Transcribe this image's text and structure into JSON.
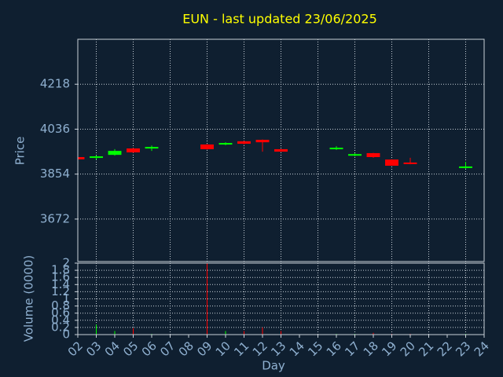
{
  "chart_data": [
    {
      "type": "candlestick",
      "title": "EUN - last updated 23/06/2025",
      "y_label": "Price",
      "x": [
        2,
        3,
        4,
        5,
        6,
        9,
        10,
        11,
        12,
        13,
        16,
        17,
        18,
        19,
        20,
        23
      ],
      "open": [
        3923,
        3920,
        3932,
        3958,
        3958,
        3974,
        3974,
        3987,
        3993,
        3955,
        3955,
        3929,
        3939,
        3913,
        3901,
        3879
      ],
      "high": [
        3925,
        3930,
        3955,
        3960,
        3970,
        3976,
        3983,
        3988,
        3994,
        3956,
        3967,
        3938,
        3940,
        3914,
        3920,
        3904
      ],
      "low": [
        3912,
        3913,
        3929,
        3940,
        3948,
        3953,
        3971,
        3974,
        3945,
        3944,
        3952,
        3926,
        3920,
        3888,
        3894,
        3876
      ],
      "close": [
        3914,
        3926,
        3948,
        3942,
        3964,
        3955,
        3980,
        3977,
        3983,
        3945,
        3961,
        3935,
        3923,
        3888,
        3895,
        3885
      ],
      "up_color": "#00ff00",
      "down_color": "#ff0000",
      "xlim": [
        2,
        24
      ],
      "ylim": [
        3500,
        4400
      ],
      "yticks": [
        3672,
        3854,
        4036,
        4218
      ],
      "grid": true
    },
    {
      "type": "bar",
      "x_label": "Day",
      "y_label": "Volume (0000)",
      "x": [
        2,
        3,
        4,
        5,
        6,
        9,
        10,
        11,
        12,
        13,
        16,
        17,
        18,
        19,
        20,
        23
      ],
      "values": [
        0.02,
        0.28,
        0.1,
        0.18,
        0.02,
        2.0,
        0.1,
        0.1,
        0.2,
        0.1,
        0.02,
        0.02,
        0.05,
        0.02,
        0.02,
        0.02
      ],
      "colors": [
        "#ff0000",
        "#00ff00",
        "#00ff00",
        "#ff0000",
        "#00ff00",
        "#ff0000",
        "#00ff00",
        "#ff0000",
        "#ff0000",
        "#ff0000",
        "#00ff00",
        "#00ff00",
        "#ff0000",
        "#ff0000",
        "#ff0000",
        "#00ff00"
      ],
      "xlim": [
        2,
        24
      ],
      "ylim": [
        0,
        2
      ],
      "yticks": [
        0,
        0.2,
        0.4,
        0.6,
        0.8,
        1,
        1.2,
        1.4,
        1.6,
        1.8,
        2
      ],
      "xticks": [
        {
          "value": 2,
          "label": "02"
        },
        {
          "value": 3,
          "label": "03"
        },
        {
          "value": 4,
          "label": "04"
        },
        {
          "value": 5,
          "label": "05"
        },
        {
          "value": 6,
          "label": "06"
        },
        {
          "value": 7,
          "label": "07"
        },
        {
          "value": 8,
          "label": "08"
        },
        {
          "value": 9,
          "label": "09"
        },
        {
          "value": 10,
          "label": "10"
        },
        {
          "value": 11,
          "label": "11"
        },
        {
          "value": 12,
          "label": "12"
        },
        {
          "value": 13,
          "label": "13"
        },
        {
          "value": 14,
          "label": "14"
        },
        {
          "value": 15,
          "label": "15"
        },
        {
          "value": 16,
          "label": "16"
        },
        {
          "value": 17,
          "label": "17"
        },
        {
          "value": 18,
          "label": "18"
        },
        {
          "value": 19,
          "label": "19"
        },
        {
          "value": 20,
          "label": "20"
        },
        {
          "value": 21,
          "label": "21"
        },
        {
          "value": 22,
          "label": "22"
        },
        {
          "value": 23,
          "label": "23"
        },
        {
          "value": 24,
          "label": "24"
        }
      ],
      "grid": true
    }
  ]
}
